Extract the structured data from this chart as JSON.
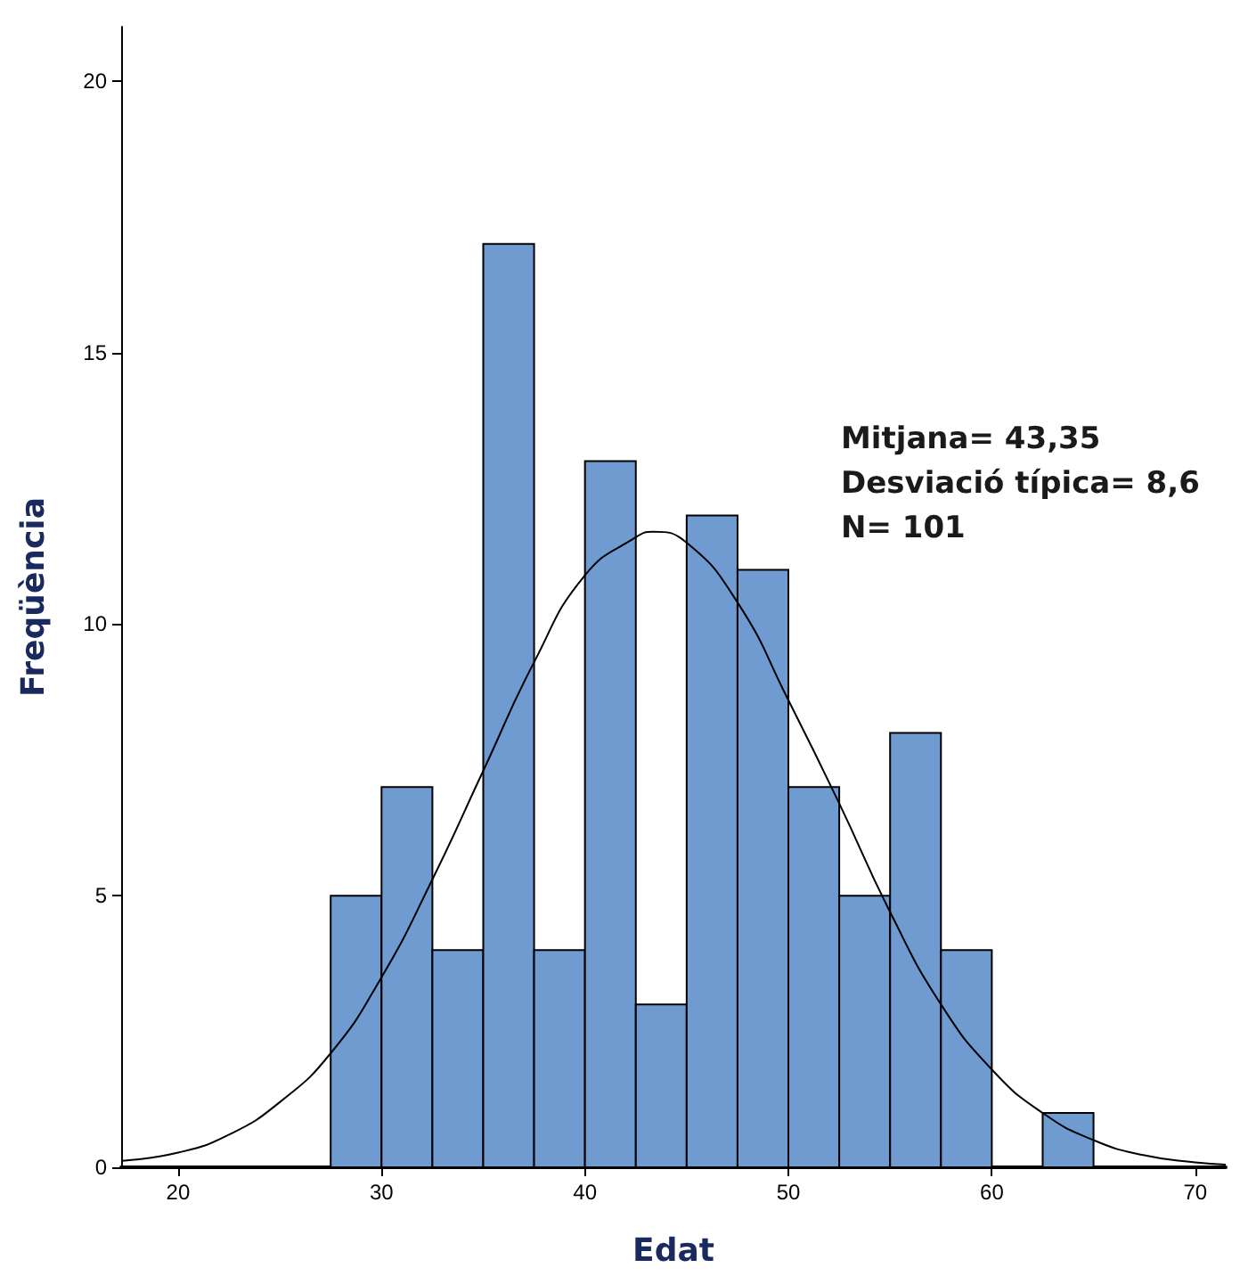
{
  "chart_data": {
    "type": "histogram",
    "xlabel": "Edat",
    "ylabel": "Freqüència",
    "bins": [
      27.5,
      30,
      32.5,
      35,
      37.5,
      40,
      42.5,
      45,
      47.5,
      50,
      52.5,
      55,
      57.5,
      60,
      62.5,
      65
    ],
    "values": [
      5,
      7,
      4,
      17,
      4,
      13,
      3,
      12,
      11,
      7,
      5,
      8,
      4,
      0,
      1
    ],
    "color": "#6f9bd1",
    "series": [
      {
        "type": "line",
        "color": "#000000",
        "x": [
          17.2,
          20,
          22.5,
          25,
          27.5,
          30,
          32.5,
          35,
          37.5,
          40,
          42.5,
          43.35,
          45,
          47.5,
          50,
          52.5,
          55,
          57.5,
          60,
          62.5,
          65,
          67.5,
          70,
          71.5
        ],
        "values": [
          0.12,
          0.27,
          0.6,
          1.2,
          2.1,
          3.5,
          5.3,
          7.3,
          9.3,
          10.9,
          11.6,
          11.7,
          11.5,
          10.4,
          8.6,
          6.7,
          4.7,
          3.0,
          1.8,
          1.0,
          0.5,
          0.22,
          0.09,
          0.05
        ]
      }
    ],
    "xlim": [
      17.2,
      71.5
    ],
    "xticks": [
      20,
      30,
      40,
      50,
      60,
      70
    ],
    "ylim": [
      0,
      21
    ],
    "yticks": [
      0,
      5,
      10,
      15,
      20
    ],
    "annotations": [
      "Mitjana= 43,35",
      "Desviació típica= 8,6",
      "N= 101"
    ],
    "grid": false,
    "marker": "none",
    "line_style": "solid"
  }
}
